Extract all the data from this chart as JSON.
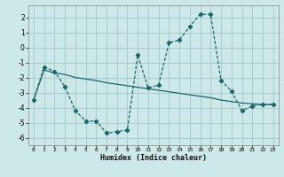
{
  "xlabel": "Humidex (Indice chaleur)",
  "bg_color": "#cde8e8",
  "grid_color": "#a0c8c8",
  "line_color": "#1a6868",
  "xlim": [
    -0.5,
    23.5
  ],
  "ylim": [
    -6.5,
    2.8
  ],
  "yticks": [
    -6,
    -5,
    -4,
    -3,
    -2,
    -1,
    0,
    1,
    2
  ],
  "xticks": [
    0,
    1,
    2,
    3,
    4,
    5,
    6,
    7,
    8,
    9,
    10,
    11,
    12,
    13,
    14,
    15,
    16,
    17,
    18,
    19,
    20,
    21,
    22,
    23
  ],
  "series1_x": [
    0,
    1,
    2,
    3,
    4,
    5,
    6,
    7,
    8,
    9,
    10,
    11,
    12,
    13,
    14,
    15,
    16,
    17,
    18,
    19,
    20,
    21,
    22,
    23
  ],
  "series1_y": [
    -3.5,
    -1.3,
    -1.6,
    -2.6,
    -4.2,
    -4.9,
    -4.9,
    -5.7,
    -5.6,
    -5.5,
    -0.5,
    -2.7,
    -2.5,
    0.3,
    0.5,
    1.4,
    2.2,
    2.2,
    -2.2,
    -2.9,
    -4.2,
    -3.9,
    -3.8,
    -3.8
  ],
  "series2_x": [
    0,
    1,
    2,
    3,
    4,
    5,
    6,
    7,
    8,
    9,
    10,
    11,
    12,
    13,
    14,
    15,
    16,
    17,
    18,
    19,
    20,
    21,
    22,
    23
  ],
  "series2_y": [
    -3.5,
    -1.5,
    -1.7,
    -1.8,
    -2.0,
    -2.1,
    -2.2,
    -2.35,
    -2.45,
    -2.55,
    -2.65,
    -2.75,
    -2.85,
    -2.95,
    -3.05,
    -3.15,
    -3.25,
    -3.35,
    -3.5,
    -3.6,
    -3.7,
    -3.75,
    -3.8,
    -3.8
  ]
}
